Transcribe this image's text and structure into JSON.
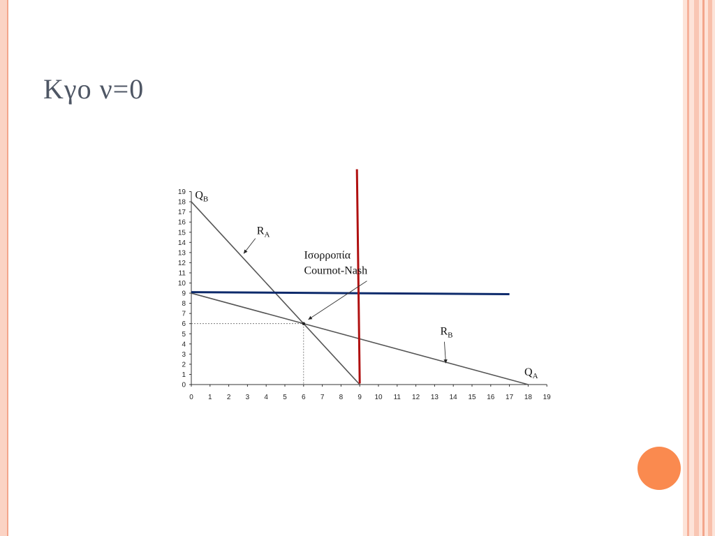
{
  "slide": {
    "title": "Κγο ν=0",
    "colors": {
      "frame": "#f3a58b",
      "accent_orb": "#fa8a4f",
      "title": "#4e5664"
    }
  },
  "chart_data": {
    "type": "line",
    "title": "",
    "xlabel": "",
    "ylabel": "",
    "xlim": [
      0,
      19
    ],
    "ylim": [
      0,
      19
    ],
    "x_ticks": [
      0,
      1,
      2,
      3,
      4,
      5,
      6,
      7,
      8,
      9,
      10,
      11,
      12,
      13,
      14,
      15,
      16,
      17,
      18,
      19
    ],
    "y_ticks": [
      0,
      1,
      2,
      3,
      4,
      5,
      6,
      7,
      8,
      9,
      10,
      11,
      12,
      13,
      14,
      15,
      16,
      17,
      18,
      19
    ],
    "grid": false,
    "axis_labels": [
      {
        "id": "qb",
        "main": "Q",
        "sub": "B",
        "x": 0.2,
        "y": 18.3
      },
      {
        "id": "qa",
        "main": "Q",
        "sub": "A",
        "x": 17.8,
        "y": 0.9
      }
    ],
    "series": [
      {
        "id": "ra",
        "points": [
          [
            0,
            18
          ],
          [
            9,
            0
          ]
        ],
        "color": "#555555"
      },
      {
        "id": "rb",
        "points": [
          [
            0,
            9
          ],
          [
            18,
            0
          ]
        ],
        "color": "#555555"
      },
      {
        "id": "horizontal-blue",
        "points": [
          [
            0,
            9.1
          ],
          [
            17,
            8.9
          ]
        ],
        "color": "#0d2a6b"
      },
      {
        "id": "vertical-red",
        "points": [
          [
            8.85,
            21.2
          ],
          [
            9,
            0.1
          ]
        ],
        "color": "#b01010"
      }
    ],
    "equilibrium": {
      "x": 6,
      "y": 6
    },
    "annotations": [
      {
        "id": "ra-label",
        "main": "R",
        "sub": "A",
        "x": 3.5,
        "y": 14.8,
        "arrow_to": [
          2.8,
          12.9
        ]
      },
      {
        "id": "rb-label",
        "main": "R",
        "sub": "B",
        "x": 13.3,
        "y": 4.9,
        "arrow_to": [
          13.6,
          2.1
        ]
      },
      {
        "id": "cn-label",
        "lines": [
          "Ισορροπία",
          "Cournot-Nash"
        ],
        "x": 6.1,
        "y": 12.4,
        "arrow_to": [
          6.25,
          6.4
        ]
      }
    ]
  }
}
